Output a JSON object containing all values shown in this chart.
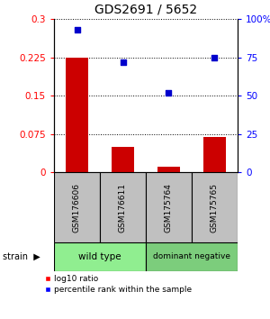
{
  "title": "GDS2691 / 5652",
  "samples": [
    "GSM176606",
    "GSM176611",
    "GSM175764",
    "GSM175765"
  ],
  "log10_ratio": [
    0.225,
    0.05,
    0.01,
    0.07
  ],
  "percentile_rank": [
    93,
    72,
    52,
    75
  ],
  "groups": [
    {
      "label": "wild type",
      "samples": [
        0,
        1
      ],
      "color": "#90EE90"
    },
    {
      "label": "dominant negative",
      "samples": [
        2,
        3
      ],
      "color": "#7CCD7C"
    }
  ],
  "bar_color": "#CC0000",
  "dot_color": "#0000CC",
  "left_yticks": [
    0,
    0.075,
    0.15,
    0.225,
    0.3
  ],
  "left_ylim": [
    0,
    0.3
  ],
  "right_yticks": [
    0,
    25,
    50,
    75,
    100
  ],
  "right_ylim": [
    0,
    100
  ],
  "title_fontsize": 10,
  "background_color": "#ffffff"
}
